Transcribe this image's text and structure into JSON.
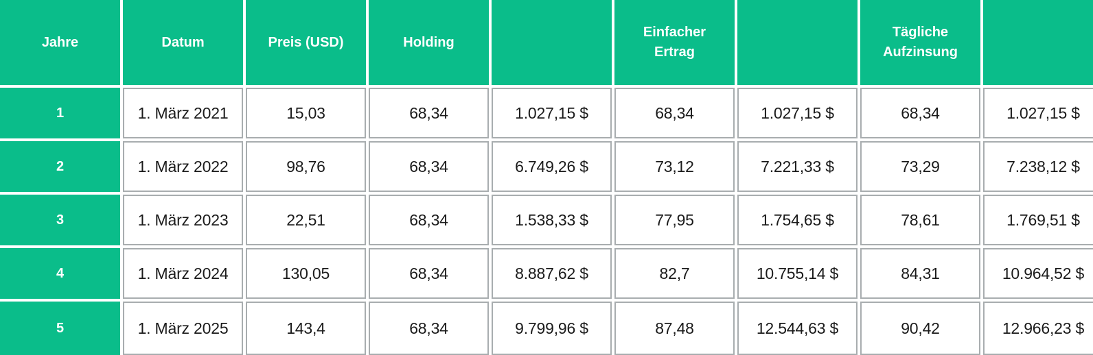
{
  "colors": {
    "accent_green": "#0abd8a",
    "cell_border": "#a8adaf",
    "header_text": "#ffffff",
    "body_text": "#1b1b1b",
    "background": "#ffffff"
  },
  "chart_data": {
    "type": "table",
    "currency": "USD",
    "columns": [
      "Jahre",
      "Datum",
      "Preis (USD)",
      "Holding",
      "",
      "Einfacher Ertrag",
      "",
      "Tägliche Aufzinsung",
      ""
    ],
    "rows": [
      [
        "1",
        "1. März 2021",
        "15,03",
        "68,34",
        "1.027,15 $",
        "68,34",
        "1.027,15 $",
        "68,34",
        "1.027,15 $"
      ],
      [
        "2",
        "1. März 2022",
        "98,76",
        "68,34",
        "6.749,26 $",
        "73,12",
        "7.221,33 $",
        "73,29",
        "7.238,12 $"
      ],
      [
        "3",
        "1. März 2023",
        "22,51",
        "68,34",
        "1.538,33 $",
        "77,95",
        "1.754,65 $",
        "78,61",
        "1.769,51 $"
      ],
      [
        "4",
        "1. März 2024",
        "130,05",
        "68,34",
        "8.887,62 $",
        "82,7",
        "10.755,14 $",
        "84,31",
        "10.964,52 $"
      ],
      [
        "5",
        "1. März 2025",
        "143,4",
        "68,34",
        "9.799,96 $",
        "87,48",
        "12.544,63 $",
        "90,42",
        "12.966,23 $"
      ]
    ]
  }
}
